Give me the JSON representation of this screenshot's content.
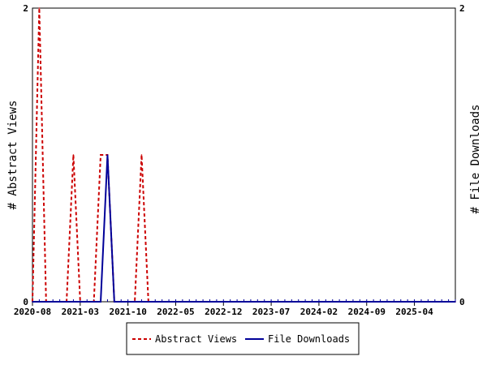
{
  "chart_data": {
    "type": "line",
    "title": "",
    "x_tick_labels": [
      "2020-08",
      "2021-03",
      "2021-10",
      "2022-05",
      "2022-12",
      "2023-07",
      "2024-02",
      "2024-09",
      "2025-04"
    ],
    "x_range": [
      "2020-08",
      "2025-10"
    ],
    "ylabel_left": "# Abstract Views",
    "ylabel_right": "# File Downloads",
    "ylim_left": [
      0,
      2
    ],
    "ylim_right": [
      0,
      2
    ],
    "y_tick_labels_left": [
      "0",
      "2"
    ],
    "y_tick_labels_right": [
      "0",
      "2"
    ],
    "legend_position": "bottom",
    "series": [
      {
        "name": "Abstract Views",
        "axis": "left",
        "color": "#cc0000",
        "style": "dashed",
        "x": [
          "2020-08",
          "2020-09",
          "2020-10",
          "2020-11",
          "2020-12",
          "2021-01",
          "2021-02",
          "2021-03",
          "2021-04",
          "2021-05",
          "2021-06",
          "2021-07",
          "2021-08",
          "2021-09",
          "2021-10",
          "2021-11",
          "2021-12",
          "2022-01",
          "2022-02",
          "2022-03",
          "2022-04",
          "2022-05",
          "2025-10"
        ],
        "y": [
          0,
          2,
          0,
          0,
          0,
          0,
          1,
          0,
          0,
          0,
          1,
          1,
          0,
          0,
          0,
          0,
          1,
          0,
          0,
          0,
          0,
          0,
          0
        ]
      },
      {
        "name": "File Downloads",
        "axis": "right",
        "color": "#000099",
        "style": "solid",
        "x": [
          "2020-08",
          "2021-05",
          "2021-06",
          "2021-07",
          "2021-08",
          "2021-09",
          "2025-10"
        ],
        "y": [
          0,
          0,
          0,
          1,
          0,
          0,
          0
        ]
      }
    ]
  }
}
